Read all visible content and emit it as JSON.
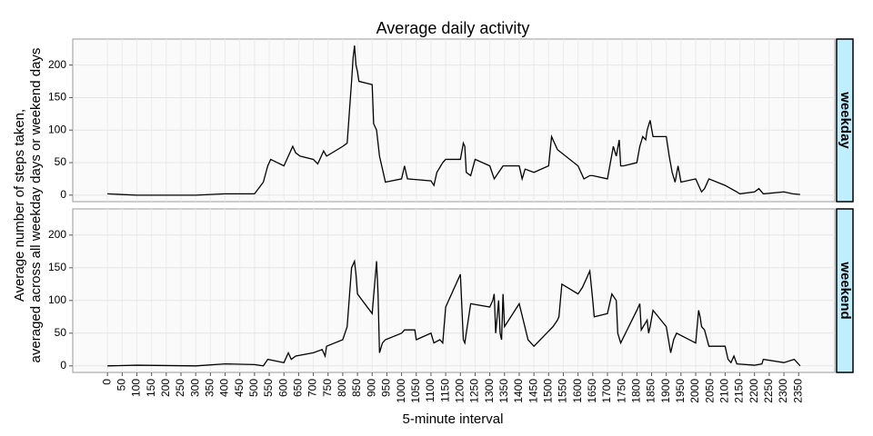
{
  "chart_data": {
    "type": "line",
    "title": "Average daily activity",
    "x_label": "5-minute interval",
    "y_label": [
      "Average number of steps taken,",
      "averaged across all weekday days or weekend days"
    ],
    "color": "#000000",
    "grid": true,
    "xlim": [
      -118,
      2473
    ],
    "ylim": [
      -10,
      240
    ],
    "xticks": [
      0,
      50,
      100,
      150,
      200,
      250,
      300,
      350,
      400,
      450,
      500,
      550,
      600,
      650,
      700,
      750,
      800,
      850,
      900,
      950,
      1000,
      1050,
      1100,
      1150,
      1200,
      1250,
      1300,
      1350,
      1400,
      1450,
      1500,
      1550,
      1600,
      1650,
      1700,
      1750,
      1800,
      1850,
      1900,
      1950,
      2000,
      2050,
      2100,
      2150,
      2200,
      2250,
      2300,
      2350
    ],
    "yticks": [
      0,
      50,
      100,
      150,
      200
    ],
    "panels": [
      {
        "label": "weekday",
        "x": [
          0,
          100,
          200,
          300,
          400,
          500,
          530,
          545,
          555,
          600,
          615,
          630,
          640,
          655,
          700,
          715,
          735,
          745,
          800,
          815,
          830,
          835,
          840,
          845,
          850,
          855,
          900,
          905,
          915,
          920,
          925,
          935,
          945,
          1000,
          1010,
          1020,
          1100,
          1110,
          1120,
          1140,
          1150,
          1200,
          1210,
          1215,
          1220,
          1235,
          1250,
          1300,
          1315,
          1330,
          1345,
          1400,
          1410,
          1420,
          1450,
          1500,
          1510,
          1520,
          1530,
          1600,
          1620,
          1640,
          1650,
          1700,
          1710,
          1720,
          1730,
          1740,
          1745,
          1755,
          1800,
          1810,
          1820,
          1830,
          1835,
          1845,
          1855,
          1900,
          1910,
          1920,
          1930,
          1940,
          1950,
          2000,
          2010,
          2020,
          2030,
          2045,
          2100,
          2120,
          2140,
          2150,
          2200,
          2215,
          2230,
          2300,
          2330,
          2355
        ],
        "values": [
          2,
          0,
          0,
          0,
          2,
          2,
          20,
          45,
          55,
          45,
          60,
          75,
          65,
          60,
          55,
          48,
          68,
          60,
          75,
          80,
          175,
          210,
          230,
          200,
          190,
          175,
          170,
          110,
          100,
          80,
          60,
          40,
          20,
          25,
          45,
          25,
          22,
          15,
          35,
          50,
          55,
          55,
          80,
          75,
          35,
          30,
          55,
          45,
          25,
          35,
          45,
          45,
          25,
          40,
          35,
          45,
          90,
          80,
          70,
          45,
          25,
          30,
          30,
          25,
          50,
          75,
          60,
          85,
          45,
          45,
          50,
          75,
          90,
          85,
          100,
          115,
          90,
          90,
          60,
          35,
          20,
          45,
          20,
          25,
          15,
          5,
          10,
          25,
          15,
          10,
          5,
          2,
          5,
          10,
          2,
          5,
          2,
          1
        ]
      },
      {
        "label": "weekend",
        "x": [
          0,
          100,
          300,
          400,
          500,
          530,
          545,
          600,
          615,
          625,
          640,
          700,
          730,
          740,
          745,
          800,
          815,
          830,
          840,
          845,
          850,
          900,
          915,
          920,
          925,
          935,
          945,
          1000,
          1010,
          1045,
          1050,
          1100,
          1110,
          1130,
          1140,
          1150,
          1155,
          1200,
          1210,
          1215,
          1235,
          1300,
          1310,
          1315,
          1320,
          1330,
          1335,
          1340,
          1345,
          1350,
          1400,
          1430,
          1450,
          1515,
          1530,
          1535,
          1545,
          1600,
          1615,
          1635,
          1640,
          1650,
          1655,
          1700,
          1715,
          1730,
          1735,
          1745,
          1800,
          1810,
          1815,
          1835,
          1840,
          1845,
          1855,
          1900,
          1915,
          1925,
          1935,
          2000,
          2010,
          2015,
          2020,
          2030,
          2045,
          2100,
          2110,
          2120,
          2130,
          2140,
          2200,
          2225,
          2230,
          2300,
          2335,
          2345,
          2355
        ],
        "values": [
          0,
          1,
          0,
          3,
          2,
          0,
          10,
          5,
          20,
          10,
          15,
          20,
          25,
          15,
          30,
          40,
          60,
          150,
          160,
          140,
          110,
          80,
          160,
          110,
          20,
          35,
          40,
          50,
          55,
          55,
          40,
          50,
          35,
          40,
          35,
          90,
          95,
          140,
          40,
          35,
          95,
          90,
          100,
          110,
          50,
          100,
          50,
          40,
          110,
          60,
          95,
          40,
          30,
          60,
          70,
          75,
          125,
          110,
          120,
          140,
          145,
          100,
          75,
          80,
          110,
          100,
          50,
          35,
          85,
          95,
          55,
          70,
          50,
          60,
          85,
          60,
          20,
          40,
          50,
          35,
          85,
          75,
          60,
          55,
          30,
          30,
          10,
          5,
          15,
          3,
          1,
          3,
          10,
          5,
          10,
          5,
          0
        ]
      }
    ]
  }
}
